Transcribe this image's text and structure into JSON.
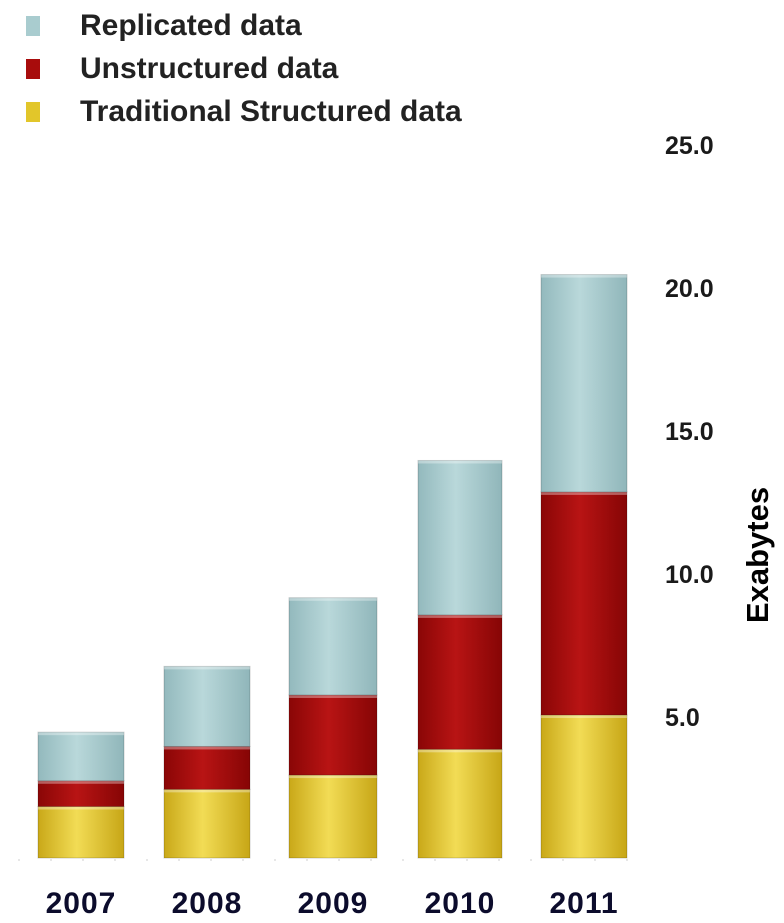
{
  "chart_data": {
    "type": "bar",
    "stacked": true,
    "categories": [
      "2007",
      "2008",
      "2009",
      "2010",
      "2011"
    ],
    "series": [
      {
        "name": "Traditional Structured data",
        "color": "#e2c62a",
        "values": [
          1.8,
          2.4,
          2.9,
          3.8,
          5.0
        ]
      },
      {
        "name": "Unstructured data",
        "color": "#a80c0c",
        "values": [
          0.9,
          1.5,
          2.8,
          4.7,
          7.8
        ]
      },
      {
        "name": "Replicated data",
        "color": "#a9cccf",
        "values": [
          1.7,
          2.8,
          3.4,
          5.4,
          7.6
        ]
      }
    ],
    "yticks": [
      "5.0",
      "10.0",
      "15.0",
      "20.0",
      "25.0"
    ],
    "ylim": [
      0,
      25
    ],
    "ylabel": "Exabytes",
    "xlabel": "",
    "title": "",
    "legend_position": "top-left",
    "legend_order": [
      "Replicated data",
      "Unstructured data",
      "Traditional Structured data"
    ],
    "axis_side": "right",
    "grid": false
  }
}
